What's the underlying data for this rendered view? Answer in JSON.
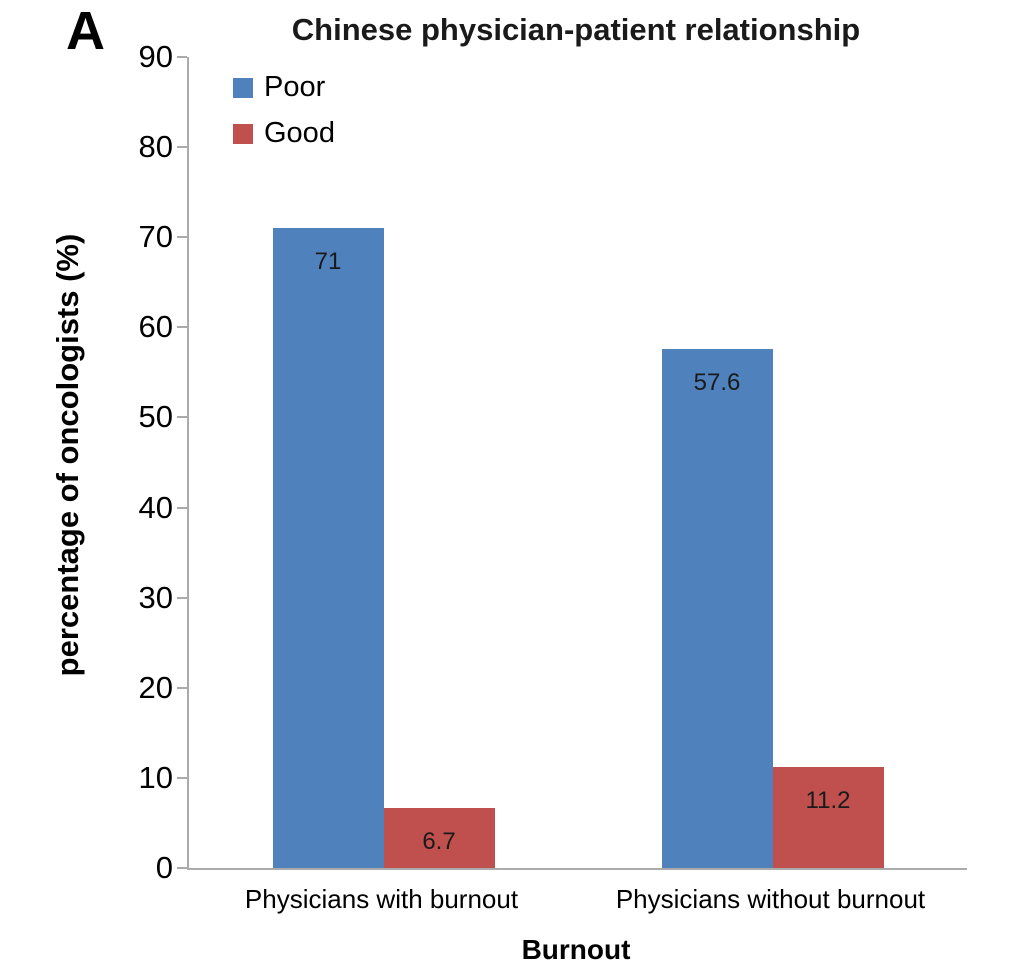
{
  "panel_label": "A",
  "chart_data": {
    "type": "bar",
    "title": "Chinese physician-patient relationship",
    "xlabel": "Burnout",
    "ylabel": "percentage of oncologists (%)",
    "categories": [
      "Physicians with burnout",
      "Physicians without burnout"
    ],
    "series": [
      {
        "name": "Poor",
        "color": "#4F81BD",
        "values": [
          71,
          57.6
        ]
      },
      {
        "name": "Good",
        "color": "#C0504D",
        "values": [
          6.7,
          11.2
        ]
      }
    ],
    "value_labels": [
      [
        "71",
        "57.6"
      ],
      [
        "6.7",
        "11.2"
      ]
    ],
    "ylim": [
      0,
      90
    ],
    "yticks": [
      0,
      10,
      20,
      30,
      40,
      50,
      60,
      70,
      80,
      90
    ],
    "grid": false,
    "legend_position": "top-left",
    "bar_value_labels_shown": true,
    "axis_color": "#ababab",
    "background": "#ffffff"
  }
}
